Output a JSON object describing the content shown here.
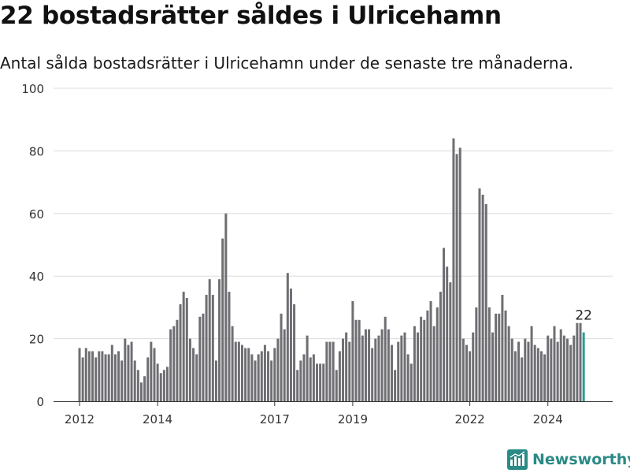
{
  "title": "22 bostadsrätter såldes i Ulricehamn",
  "subtitle": "Antal sålda bostadsrätter i Ulricehamn under de senaste tre månaderna.",
  "brand": {
    "name": "Newsworthy",
    "icon": "newsworthy-logo-icon",
    "color": "#2a8a86"
  },
  "chart_data": {
    "type": "bar",
    "ylim": [
      0,
      100
    ],
    "y_ticks": [
      0,
      20,
      40,
      60,
      80,
      100
    ],
    "grid": true,
    "x_ticks": [
      {
        "label": "2012",
        "index": 0
      },
      {
        "label": "2014",
        "index": 24
      },
      {
        "label": "2017",
        "index": 60
      },
      {
        "label": "2019",
        "index": 84
      },
      {
        "label": "2022",
        "index": 120
      },
      {
        "label": "2024",
        "index": 144
      }
    ],
    "bar_color": "#6e6e73",
    "highlight_color": "#2a9d8f",
    "highlight_label": "22",
    "values": [
      17,
      14,
      17,
      16,
      16,
      14,
      16,
      16,
      15,
      15,
      18,
      15,
      16,
      13,
      20,
      18,
      19,
      13,
      10,
      6,
      8,
      14,
      19,
      17,
      12,
      9,
      10,
      11,
      23,
      24,
      26,
      31,
      35,
      33,
      20,
      17,
      15,
      27,
      28,
      34,
      39,
      34,
      13,
      39,
      52,
      60,
      35,
      24,
      19,
      19,
      18,
      17,
      17,
      15,
      13,
      15,
      16,
      18,
      16,
      13,
      17,
      20,
      28,
      23,
      41,
      36,
      31,
      10,
      13,
      15,
      21,
      14,
      15,
      12,
      12,
      12,
      19,
      19,
      19,
      10,
      16,
      20,
      22,
      19,
      32,
      26,
      26,
      21,
      23,
      23,
      17,
      20,
      21,
      23,
      27,
      23,
      18,
      10,
      19,
      21,
      22,
      15,
      12,
      24,
      22,
      27,
      26,
      29,
      32,
      24,
      30,
      35,
      49,
      43,
      38,
      84,
      79,
      81,
      20,
      18,
      16,
      22,
      30,
      68,
      66,
      63,
      30,
      22,
      28,
      28,
      34,
      29,
      24,
      20,
      16,
      19,
      14,
      20,
      19,
      24,
      18,
      17,
      16,
      15,
      21,
      20,
      24,
      19,
      23,
      21,
      20,
      18,
      21,
      25,
      25,
      22
    ]
  }
}
